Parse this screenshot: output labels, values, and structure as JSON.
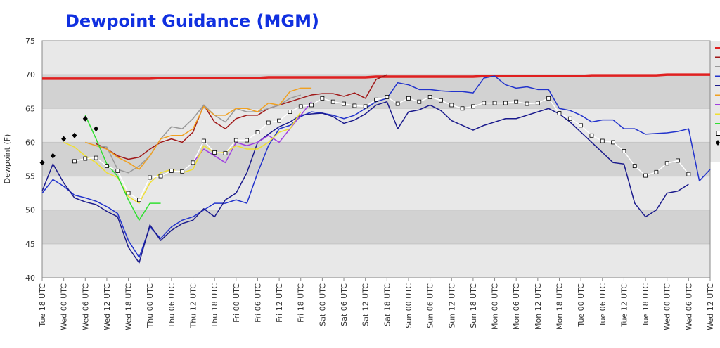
{
  "chart_data": {
    "type": "line",
    "title": "Dewpoint Guidance  (MGM)",
    "y_label": "Dewpoint (F)",
    "categories": [
      "Tue 18 UTC",
      null,
      "Wed 00 UTC",
      null,
      "Wed 06 UTC",
      null,
      "Wed 12 UTC",
      null,
      "Wed 18 UTC",
      null,
      "Thu 00 UTC",
      null,
      "Thu 06 UTC",
      null,
      "Thu 12 UTC",
      null,
      "Thu 18 UTC",
      null,
      "Fri 00 UTC",
      null,
      "Fri 06 UTC",
      null,
      "Fri 12 UTC",
      null,
      "Fri 18 UTC",
      null,
      "Sat 00 UTC",
      null,
      "Sat 06 UTC",
      null,
      "Sat 12 UTC",
      null,
      "Sat 18 UTC",
      null,
      "Sun 00 UTC",
      null,
      "Sun 06 UTC",
      null,
      "Sun 12 UTC",
      null,
      "Sun 18 UTC",
      null,
      "Mon 00 UTC",
      null,
      "Mon 06 UTC",
      null,
      "Mon 12 UTC",
      null,
      "Mon 18 UTC",
      null,
      "Tue 00 UTC",
      null,
      "Tue 06 UTC",
      null,
      "Tue 12 UTC",
      null,
      "Tue 18 UTC",
      null,
      "Wed 00 UTC",
      null,
      "Wed 06 UTC",
      null,
      "Wed 12 UTC"
    ],
    "ylim": [
      40,
      75
    ],
    "yticks": [
      40,
      45,
      50,
      55,
      60,
      65,
      70,
      75
    ],
    "grid": "bands",
    "series": [
      {
        "color": "#e02020",
        "line_style": "thick",
        "values": [
          69.4,
          69.4,
          69.4,
          69.4,
          69.4,
          69.4,
          69.4,
          69.4,
          69.4,
          69.4,
          69.4,
          69.5,
          69.5,
          69.5,
          69.5,
          69.5,
          69.5,
          69.5,
          69.5,
          69.5,
          69.5,
          69.6,
          69.6,
          69.6,
          69.6,
          69.6,
          69.6,
          69.6,
          69.6,
          69.6,
          69.6,
          69.7,
          69.7,
          69.7,
          69.7,
          69.7,
          69.7,
          69.7,
          69.7,
          69.7,
          69.7,
          69.8,
          69.8,
          69.8,
          69.8,
          69.8,
          69.8,
          69.8,
          69.8,
          69.8,
          69.8,
          69.9,
          69.9,
          69.9,
          69.9,
          69.9,
          69.9,
          69.9,
          70,
          70,
          70,
          70,
          70
        ]
      },
      {
        "color": "#a01818",
        "values": [
          null,
          null,
          null,
          null,
          null,
          59.8,
          59.0,
          58.0,
          57.5,
          57.8,
          59.0,
          60.0,
          60.5,
          60.0,
          61.5,
          65.5,
          63.0,
          62.0,
          63.5,
          64.0,
          64.0,
          65.0,
          65.5,
          66.0,
          66.5,
          67.0,
          67.2,
          67.2,
          66.8,
          67.3,
          66.5,
          69.3,
          70.0,
          null,
          null,
          null,
          null,
          null,
          null,
          null,
          null,
          null,
          null,
          null,
          null,
          null,
          null,
          null,
          null,
          null,
          null,
          null,
          null,
          null,
          null,
          null,
          null,
          null,
          null,
          null,
          null,
          null,
          null
        ]
      },
      {
        "color": "#999999",
        "values": [
          null,
          null,
          null,
          null,
          null,
          59.5,
          59.3,
          56.0,
          55.5,
          56.5,
          58.0,
          60.5,
          62.3,
          62.0,
          63.5,
          65.5,
          64.0,
          63.0,
          65.0,
          64.5,
          64.5,
          65.0,
          65.5,
          66.5,
          67.0,
          null,
          null,
          null,
          null,
          null,
          null,
          null,
          null,
          null,
          null,
          null,
          null,
          null,
          null,
          null,
          null,
          null,
          null,
          null,
          null,
          null,
          null,
          null,
          null,
          null,
          null,
          null,
          null,
          null,
          null,
          null,
          null,
          null,
          null,
          null,
          null,
          null,
          null
        ]
      },
      {
        "color": "#2233cc",
        "values": [
          52.5,
          54.5,
          53.5,
          52.2,
          51.8,
          51.3,
          50.5,
          49.5,
          45.5,
          43.0,
          47.5,
          45.8,
          47.5,
          48.5,
          49.0,
          50.0,
          51.0,
          51.0,
          51.5,
          51.0,
          55.5,
          59.5,
          62.0,
          62.5,
          63.8,
          64.5,
          64.3,
          64.0,
          63.5,
          64.0,
          65.0,
          66.0,
          66.5,
          68.8,
          68.5,
          67.8,
          67.8,
          67.6,
          67.5,
          67.5,
          67.3,
          69.5,
          69.8,
          68.5,
          68.0,
          68.2,
          67.8,
          67.8,
          65.0,
          64.7,
          64.0,
          63.0,
          63.3,
          63.3,
          62.0,
          62.0,
          61.2,
          61.3,
          61.4,
          61.6,
          62.0,
          54.3,
          56.0
        ]
      },
      {
        "color": "#1a1a8c",
        "values": [
          52.8,
          56.8,
          54.0,
          51.8,
          51.2,
          50.8,
          49.8,
          49.0,
          44.5,
          42.2,
          47.8,
          45.5,
          47.0,
          48.0,
          48.5,
          50.2,
          49.0,
          51.5,
          52.5,
          55.5,
          60.0,
          61.2,
          62.3,
          63.0,
          64.0,
          64.2,
          64.3,
          63.8,
          62.8,
          63.3,
          64.2,
          65.5,
          66.0,
          62.0,
          64.5,
          64.8,
          65.5,
          64.7,
          63.2,
          62.5,
          61.8,
          62.5,
          63.0,
          63.5,
          63.5,
          64.0,
          64.5,
          65.0,
          64.2,
          63.0,
          61.5,
          60.0,
          58.5,
          57.0,
          56.8,
          51.0,
          49.0,
          50.0,
          52.5,
          52.8,
          53.8,
          null,
          null
        ]
      },
      {
        "color": "#f0a020",
        "values": [
          null,
          null,
          null,
          null,
          60.0,
          59.5,
          59.0,
          57.8,
          57.0,
          56.0,
          58.0,
          60.5,
          61.0,
          61.0,
          62.0,
          65.3,
          64.0,
          64.0,
          65.0,
          65.0,
          64.5,
          65.8,
          65.5,
          67.5,
          68.0,
          68.0,
          null,
          null,
          null,
          null,
          null,
          null,
          null,
          null,
          null,
          null,
          null,
          null,
          null,
          null,
          null,
          null,
          null,
          null,
          null,
          null,
          null,
          null,
          null,
          null,
          null,
          null,
          null,
          null,
          null,
          null,
          null,
          null,
          null,
          null,
          null,
          null,
          null
        ]
      },
      {
        "color": "#a040e0",
        "values": [
          null,
          null,
          null,
          null,
          null,
          null,
          null,
          null,
          null,
          null,
          null,
          null,
          null,
          null,
          57.0,
          59.0,
          58.0,
          57.0,
          60.0,
          59.5,
          60.0,
          61.0,
          60.0,
          62.0,
          64.0,
          66.0,
          null,
          null,
          null,
          null,
          null,
          null,
          null,
          null,
          null,
          null,
          null,
          null,
          null,
          null,
          null,
          null,
          null,
          null,
          null,
          null,
          null,
          null,
          null,
          null,
          null,
          null,
          null,
          null,
          null,
          null,
          null,
          null,
          null,
          null,
          null,
          null,
          null
        ]
      },
      {
        "color": "#f0e030",
        "values": [
          null,
          null,
          60.0,
          59.3,
          58.0,
          57.0,
          55.5,
          54.8,
          52.0,
          51.0,
          54.0,
          55.5,
          56.0,
          55.5,
          56.0,
          59.5,
          58.5,
          58.5,
          59.5,
          59.0,
          59.0,
          60.0,
          61.5,
          62.0,
          64.5,
          null,
          null,
          null,
          null,
          null,
          null,
          null,
          null,
          null,
          null,
          null,
          null,
          null,
          null,
          null,
          null,
          null,
          null,
          null,
          null,
          null,
          null,
          null,
          null,
          null,
          null,
          null,
          null,
          null,
          null,
          null,
          null,
          null,
          null,
          null,
          null,
          null,
          null
        ]
      },
      {
        "color": "#30e030",
        "values": [
          null,
          null,
          null,
          null,
          64.0,
          60.5,
          56.8,
          55.0,
          51.5,
          48.5,
          51.0,
          51.0,
          null,
          null,
          null,
          null,
          null,
          null,
          null,
          null,
          null,
          null,
          null,
          null,
          null,
          null,
          null,
          null,
          null,
          null,
          null,
          null,
          null,
          null,
          null,
          null,
          null,
          null,
          null,
          null,
          null,
          null,
          null,
          null,
          null,
          null,
          null,
          null,
          null,
          null,
          null,
          null,
          null,
          null,
          null,
          null,
          null,
          null,
          null,
          null,
          null,
          null,
          null
        ]
      },
      {
        "color": "#ffffff",
        "marker": "square",
        "values": [
          null,
          null,
          null,
          57.2,
          57.6,
          57.7,
          56.5,
          55.8,
          52.5,
          51.5,
          54.8,
          55.0,
          55.8,
          55.7,
          57.0,
          60.2,
          58.5,
          58.4,
          60.3,
          60.3,
          61.5,
          62.9,
          63.2,
          64.5,
          65.3,
          65.5,
          66.5,
          66.0,
          65.7,
          65.4,
          65.3,
          66.3,
          66.7,
          65.7,
          66.5,
          66.0,
          66.7,
          66.2,
          65.5,
          65.0,
          65.3,
          65.8,
          65.8,
          65.8,
          66.0,
          65.7,
          65.8,
          66.5,
          64.3,
          63.5,
          62.5,
          61.0,
          60.2,
          60.0,
          58.7,
          56.5,
          55.1,
          55.6,
          56.9,
          57.3,
          55.3,
          null,
          null
        ]
      },
      {
        "color": "#000000",
        "marker": "diamond",
        "line": false,
        "values": [
          57.0,
          58.0,
          60.5,
          61.0,
          63.5,
          62.0,
          null,
          null,
          null,
          null,
          null,
          null,
          null,
          null,
          null,
          null,
          null,
          null,
          null,
          null,
          null,
          null,
          null,
          null,
          null,
          null,
          null,
          null,
          null,
          null,
          null,
          null,
          null,
          null,
          null,
          null,
          null,
          null,
          null,
          null,
          null,
          null,
          null,
          null,
          null,
          null,
          null,
          null,
          null,
          null,
          null,
          null,
          null,
          null,
          null,
          null,
          null,
          null,
          null,
          null,
          null,
          null,
          null
        ]
      }
    ]
  }
}
